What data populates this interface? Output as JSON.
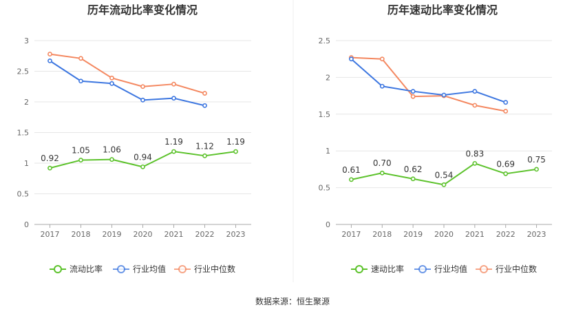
{
  "source_text": "数据来源：恒生聚源",
  "colors": {
    "company": "#5cc22b",
    "industry_avg": "#3c76e0",
    "industry_median": "#f4875f",
    "grid": "#e6e6e6",
    "axis": "#cccccc"
  },
  "chart_data": [
    {
      "type": "line",
      "title": "历年流动比率变化情况",
      "categories": [
        "2017",
        "2018",
        "2019",
        "2020",
        "2021",
        "2022",
        "2023"
      ],
      "ylim": [
        0,
        3
      ],
      "yticks": [
        0,
        0.5,
        1,
        1.5,
        2,
        2.5,
        3
      ],
      "ytick_labels": [
        "0",
        "0.5",
        "1",
        "1.5",
        "2",
        "2.5",
        "3"
      ],
      "series": [
        {
          "key": "company",
          "name": "流动比率",
          "values": [
            0.92,
            1.05,
            1.06,
            0.94,
            1.19,
            1.12,
            1.19
          ],
          "labels": [
            "0.92",
            "1.05",
            "1.06",
            "0.94",
            "1.19",
            "1.12",
            "1.19"
          ]
        },
        {
          "key": "industry_avg",
          "name": "行业均值",
          "values": [
            2.67,
            2.34,
            2.3,
            2.03,
            2.06,
            1.94,
            null
          ]
        },
        {
          "key": "industry_median",
          "name": "行业中位数",
          "values": [
            2.78,
            2.71,
            2.39,
            2.25,
            2.29,
            2.14,
            null
          ]
        }
      ]
    },
    {
      "type": "line",
      "title": "历年速动比率变化情况",
      "categories": [
        "2017",
        "2018",
        "2019",
        "2020",
        "2021",
        "2022",
        "2023"
      ],
      "ylim": [
        0,
        2.5
      ],
      "yticks": [
        0,
        0.5,
        1,
        1.5,
        2,
        2.5
      ],
      "ytick_labels": [
        "0",
        "0.5",
        "1",
        "1.5",
        "2",
        "2.5"
      ],
      "series": [
        {
          "key": "company",
          "name": "速动比率",
          "values": [
            0.61,
            0.7,
            0.62,
            0.54,
            0.83,
            0.69,
            0.75
          ],
          "labels": [
            "0.61",
            "0.70",
            "0.62",
            "0.54",
            "0.83",
            "0.69",
            "0.75"
          ]
        },
        {
          "key": "industry_avg",
          "name": "行业均值",
          "values": [
            2.25,
            1.88,
            1.81,
            1.76,
            1.81,
            1.66,
            null
          ]
        },
        {
          "key": "industry_median",
          "name": "行业中位数",
          "values": [
            2.27,
            2.25,
            1.74,
            1.75,
            1.62,
            1.54,
            null
          ]
        }
      ]
    }
  ]
}
